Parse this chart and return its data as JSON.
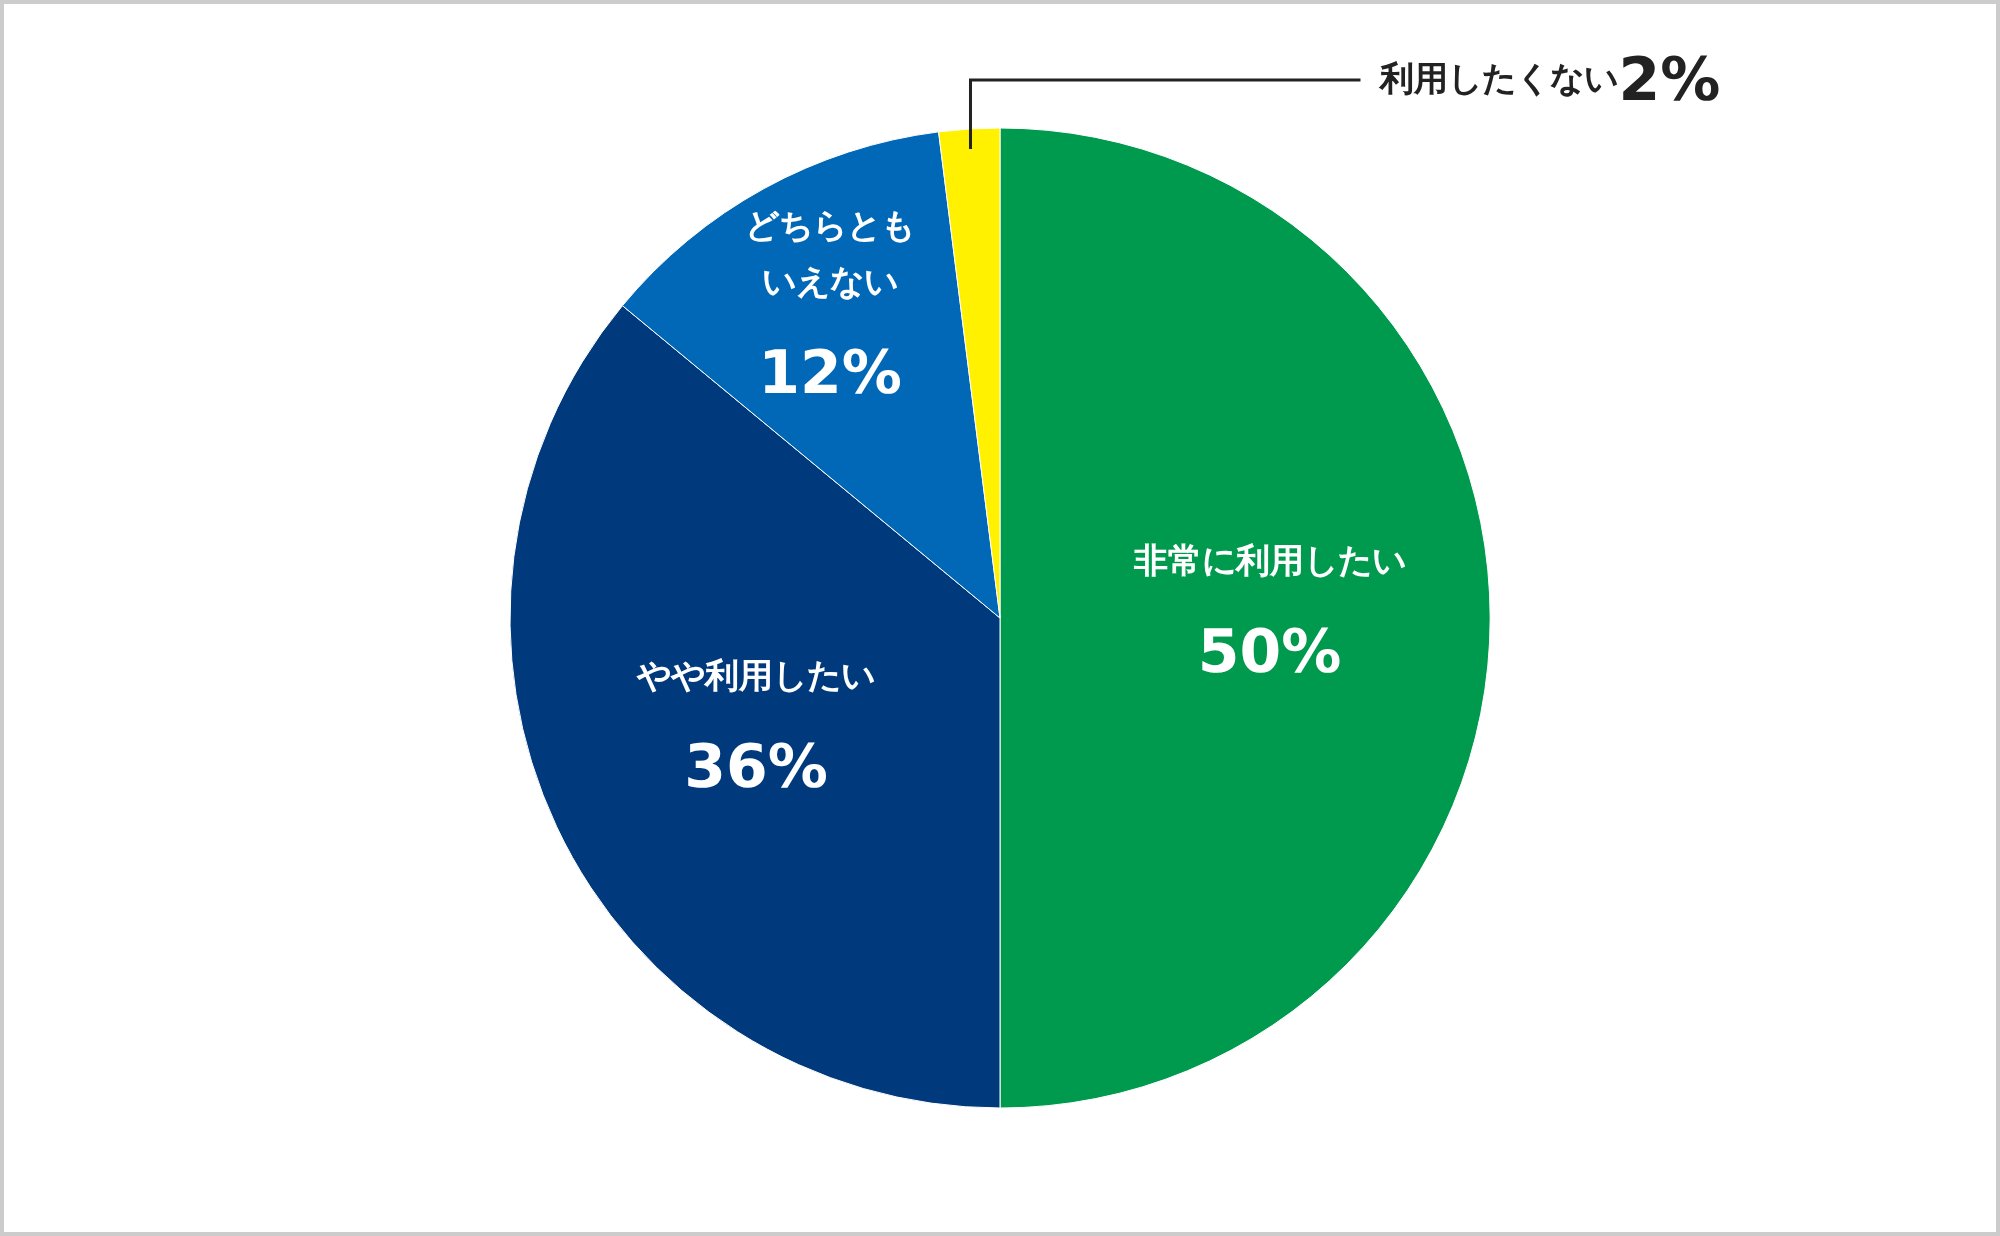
{
  "chart_data": {
    "type": "pie",
    "categories": [
      "非常に利用したい",
      "やや利用したい",
      "どちらともいえない",
      "利用したくない"
    ],
    "values": [
      50,
      36,
      12,
      2
    ],
    "colors": [
      "#009a4e",
      "#003a7d",
      "#0068b7",
      "#fff100"
    ],
    "value_labels": [
      "50%",
      "36%",
      "12%",
      "2%"
    ]
  }
}
